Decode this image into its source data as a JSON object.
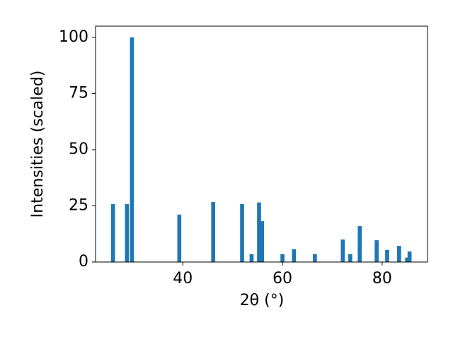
{
  "chart_data": {
    "type": "bar",
    "x_label": "2θ (°)",
    "y_label": "Intensities (scaled)",
    "x": [
      26.0,
      28.8,
      29.8,
      39.3,
      46.1,
      51.9,
      53.8,
      55.3,
      55.9,
      60.0,
      62.3,
      66.5,
      72.1,
      73.6,
      75.5,
      78.9,
      81.0,
      83.4,
      85.0,
      85.5
    ],
    "values": [
      25.8,
      25.8,
      100,
      21.1,
      26.7,
      25.8,
      3.5,
      26.5,
      18.2,
      3.5,
      5.7,
      3.5,
      10,
      3.5,
      16,
      9.7,
      5.4,
      7.2,
      2,
      4.7
    ],
    "bar_width": 0.8,
    "color": "#1f77b4",
    "xlim": [
      22.5,
      89.1
    ],
    "xticks": [
      40,
      60,
      80
    ],
    "ylim": [
      0,
      105
    ],
    "yticks": [
      0,
      25,
      50,
      75,
      100
    ]
  }
}
